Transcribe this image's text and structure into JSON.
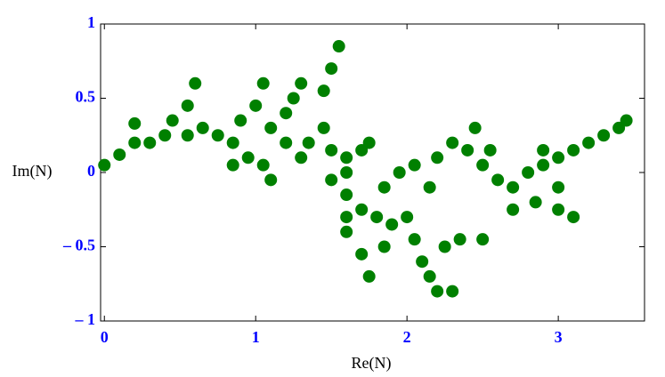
{
  "chart_data": {
    "type": "scatter",
    "x_label": "Re(N)",
    "y_label": "Im(N)",
    "xlim": [
      -0.025,
      3.57
    ],
    "ylim": [
      -1,
      1
    ],
    "xticks": [
      0,
      1,
      2,
      3
    ],
    "yticks": [
      {
        "value": -1,
        "label": "– 1"
      },
      {
        "value": -0.5,
        "label": "– 0.5"
      },
      0,
      0.5,
      1
    ],
    "color": "#008000",
    "x": [
      0,
      0.1,
      0.2,
      0.2,
      0.3,
      0.4,
      0.45,
      0.55,
      0.6,
      0.55,
      0.65,
      0.75,
      0.85,
      0.85,
      0.95,
      1.05,
      1.1,
      0.9,
      1.0,
      1.05,
      1.1,
      1.2,
      1.25,
      1.3,
      1.2,
      1.3,
      1.35,
      1.45,
      1.45,
      1.5,
      1.55,
      1.5,
      1.6,
      1.7,
      1.75,
      1.6,
      1.5,
      1.6,
      1.6,
      1.6,
      1.7,
      1.8,
      1.7,
      1.75,
      1.85,
      1.9,
      2.0,
      2.05,
      2.1,
      2.15,
      2.2,
      2.3,
      2.25,
      2.35,
      2.5,
      1.85,
      1.95,
      2.05,
      2.15,
      2.2,
      2.3,
      2.4,
      2.45,
      2.5,
      2.6,
      2.7,
      2.7,
      2.85,
      3.0,
      3.1,
      2.8,
      2.9,
      3.0,
      3.1,
      3.2,
      3.3,
      3.4,
      3.45,
      2.9,
      3.0,
      2.55
    ],
    "values": [
      0.05,
      0.12,
      0.2,
      0.33,
      0.2,
      0.25,
      0.35,
      0.45,
      0.6,
      0.25,
      0.3,
      0.25,
      0.2,
      0.05,
      0.1,
      0.05,
      -0.05,
      0.35,
      0.45,
      0.6,
      0.3,
      0.4,
      0.5,
      0.6,
      0.2,
      0.1,
      0.2,
      0.3,
      0.55,
      0.7,
      0.85,
      0.15,
      0.1,
      0.15,
      0.2,
      0.0,
      -0.05,
      -0.15,
      -0.3,
      -0.4,
      -0.25,
      -0.3,
      -0.55,
      -0.7,
      -0.5,
      -0.35,
      -0.3,
      -0.45,
      -0.6,
      -0.7,
      -0.8,
      -0.8,
      -0.5,
      -0.45,
      -0.45,
      -0.1,
      0.0,
      0.05,
      -0.1,
      0.1,
      0.2,
      0.15,
      0.3,
      0.05,
      -0.05,
      -0.1,
      -0.25,
      -0.2,
      -0.25,
      -0.3,
      0.0,
      0.05,
      0.1,
      0.15,
      0.2,
      0.25,
      0.3,
      0.35,
      0.15,
      -0.1,
      0.15
    ]
  }
}
